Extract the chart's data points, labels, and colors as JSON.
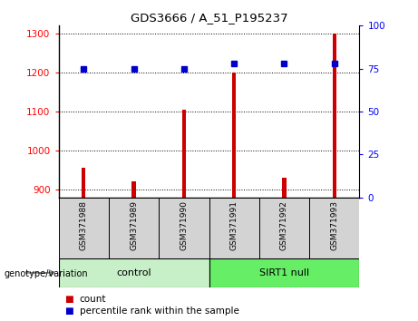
{
  "title": "GDS3666 / A_51_P195237",
  "samples": [
    "GSM371988",
    "GSM371989",
    "GSM371990",
    "GSM371991",
    "GSM371992",
    "GSM371993"
  ],
  "counts": [
    955,
    920,
    1105,
    1200,
    930,
    1300
  ],
  "percentile_ranks": [
    75,
    75,
    75,
    78,
    78,
    78
  ],
  "ylim_left": [
    880,
    1320
  ],
  "ylim_right": [
    0,
    100
  ],
  "yticks_left": [
    900,
    1000,
    1100,
    1200,
    1300
  ],
  "yticks_right": [
    0,
    25,
    50,
    75,
    100
  ],
  "bar_color": "#cc0000",
  "dot_color": "#0000cc",
  "sample_bg_color": "#d3d3d3",
  "control_color": "#c8f0c8",
  "sirt_color": "#66ee66",
  "legend_count_label": "count",
  "legend_pct_label": "percentile rank within the sample",
  "genotype_label": "genotype/variation",
  "n_control": 3,
  "n_sirt": 3
}
